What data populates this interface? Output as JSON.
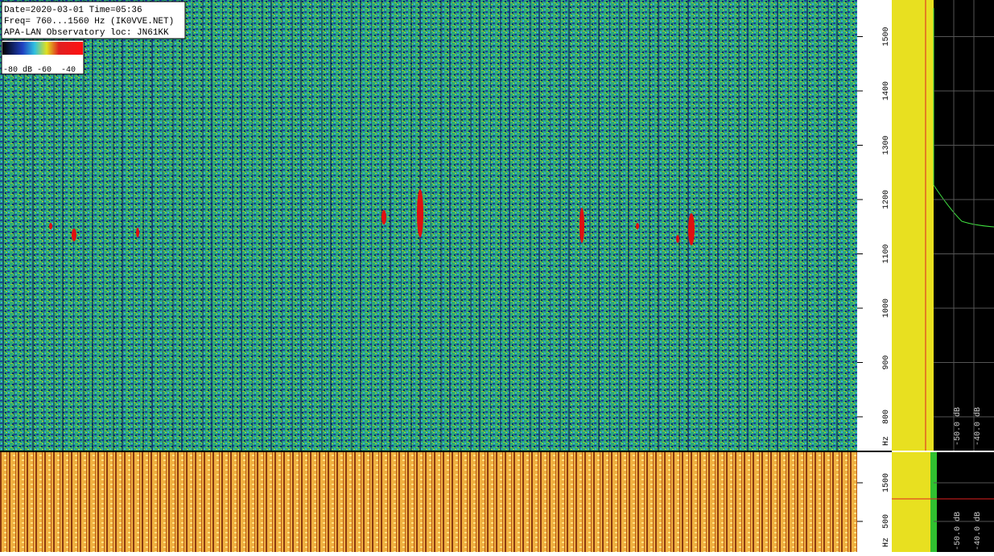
{
  "header": {
    "lines": [
      "Date=2020-03-01 Time=05:36",
      "Freq= 760...1560 Hz (IK0VVE.NET)",
      "APA-LAN Observatory loc: JN61KK"
    ]
  },
  "colorbar": {
    "labels": [
      "-80 dB",
      "-60",
      "-40"
    ]
  },
  "main_axis": {
    "lim": [
      760,
      1560
    ],
    "ticks": [
      800,
      900,
      1000,
      1100,
      1200,
      1300,
      1400,
      1500
    ],
    "unit": "Hz"
  },
  "bottom_axis": {
    "lim": [
      0,
      2000
    ],
    "ticks": [
      500,
      1500
    ],
    "unit": "Hz"
  },
  "level_labels": [
    "-50.0 dB",
    "-40.0 dB"
  ]
}
